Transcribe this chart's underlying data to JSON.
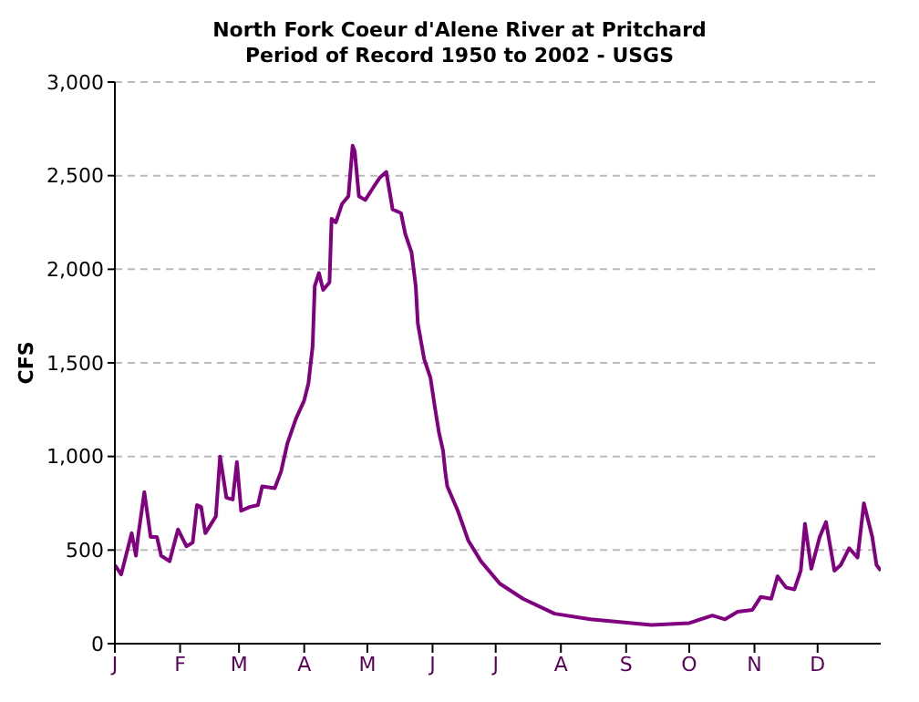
{
  "chart_data": {
    "type": "line",
    "title": "North Fork Coeur d'Alene River at Pritchard",
    "subtitle": "Period of Record 1950 to 2002 - USGS",
    "ylabel": "CFS",
    "categories": [
      "J",
      null,
      null,
      null,
      null,
      null,
      null,
      null,
      null,
      null,
      null,
      null,
      null,
      null,
      null,
      null,
      null,
      null,
      null,
      null,
      null,
      null,
      null,
      null,
      null,
      null,
      null,
      null,
      null,
      null,
      null,
      "F",
      null,
      null,
      null,
      null,
      null,
      null,
      null,
      null,
      null,
      null,
      null,
      null,
      null,
      null,
      null,
      null,
      null,
      null,
      null,
      null,
      null,
      null,
      null,
      null,
      null,
      null,
      null,
      "M",
      null,
      null,
      null,
      null,
      null,
      null,
      null,
      null,
      null,
      null,
      null,
      null,
      null,
      null,
      null,
      null,
      null,
      null,
      null,
      null,
      null,
      null,
      null,
      null,
      null,
      null,
      null,
      null,
      null,
      null,
      "A",
      null,
      null,
      null,
      null,
      null,
      null,
      null,
      null,
      null,
      null,
      null,
      null,
      null,
      null,
      null,
      null,
      null,
      null,
      null,
      null,
      null,
      null,
      null,
      null,
      null,
      null,
      null,
      null,
      null,
      "M",
      null,
      null,
      null,
      null,
      null,
      null,
      null,
      null,
      null,
      null,
      null,
      null,
      null,
      null,
      null,
      null,
      null,
      null,
      null,
      null,
      null,
      null,
      null,
      null,
      null,
      null,
      null,
      null,
      null,
      null,
      "J",
      null,
      null,
      null,
      null,
      null,
      null,
      null,
      null,
      null,
      null,
      null,
      null,
      null,
      null,
      null,
      null,
      null,
      null,
      null,
      null,
      null,
      null,
      null,
      null,
      null,
      null,
      null,
      null,
      null,
      "J",
      null,
      null,
      null,
      null,
      null,
      null,
      null,
      null,
      null,
      null,
      null,
      null,
      null,
      null,
      null,
      null,
      null,
      null,
      null,
      null,
      null,
      null,
      null,
      null,
      null,
      null,
      null,
      null,
      null,
      null,
      "A",
      null,
      null,
      null,
      null,
      null,
      null,
      null,
      null,
      null,
      null,
      null,
      null,
      null,
      null,
      null,
      null,
      null,
      null,
      null,
      null,
      null,
      null,
      null,
      null,
      null,
      null,
      null,
      null,
      null,
      null,
      "S",
      null,
      null,
      null,
      null,
      null,
      null,
      null,
      null,
      null,
      null,
      null,
      null,
      null,
      null,
      null,
      null,
      null,
      null,
      null,
      null,
      null,
      null,
      null,
      null,
      null,
      null,
      null,
      null,
      null,
      "O",
      null,
      null,
      null,
      null,
      null,
      null,
      null,
      null,
      null,
      null,
      null,
      null,
      null,
      null,
      null,
      null,
      null,
      null,
      null,
      null,
      null,
      null,
      null,
      null,
      null,
      null,
      null,
      null,
      null,
      null,
      "N",
      null,
      null,
      null,
      null,
      null,
      null,
      null,
      null,
      null,
      null,
      null,
      null,
      null,
      null,
      null,
      null,
      null,
      null,
      null,
      null,
      null,
      null,
      null,
      null,
      null,
      null,
      null,
      null,
      null,
      "D",
      null,
      null,
      null,
      null,
      null,
      null,
      null,
      null,
      null,
      null,
      null,
      null,
      null,
      null,
      null,
      null,
      null,
      null,
      null,
      null,
      null,
      null,
      null,
      null,
      null,
      null,
      null,
      null,
      null,
      null
    ],
    "series": [
      {
        "color": "#800080",
        "values": [
          420,
          null,
          null,
          370,
          null,
          null,
          null,
          null,
          590,
          null,
          470,
          570,
          null,
          null,
          810,
          null,
          null,
          570,
          null,
          null,
          570,
          null,
          470,
          null,
          null,
          null,
          440,
          null,
          null,
          null,
          610,
          null,
          null,
          null,
          520,
          null,
          null,
          540,
          null,
          740,
          null,
          730,
          null,
          590,
          null,
          null,
          null,
          null,
          680,
          null,
          1000,
          null,
          null,
          780,
          null,
          null,
          770,
          null,
          970,
          null,
          710,
          null,
          null,
          null,
          730,
          null,
          null,
          null,
          740,
          null,
          840,
          null,
          null,
          null,
          null,
          null,
          830,
          null,
          null,
          920,
          null,
          null,
          1070,
          null,
          null,
          null,
          1200,
          null,
          null,
          null,
          1300,
          null,
          1390,
          null,
          1590,
          1910,
          null,
          1980,
          null,
          1890,
          null,
          null,
          1930,
          2270,
          null,
          2250,
          null,
          null,
          2350,
          null,
          null,
          2390,
          null,
          2660,
          2630,
          null,
          2390,
          null,
          null,
          2370,
          null,
          null,
          null,
          2440,
          null,
          null,
          2490,
          null,
          null,
          2520,
          null,
          null,
          2320,
          null,
          null,
          null,
          2300,
          null,
          2190,
          null,
          null,
          2090,
          null,
          1910,
          1710,
          null,
          null,
          1520,
          null,
          null,
          1420,
          null,
          1270,
          null,
          1130,
          null,
          1030,
          920,
          840,
          null,
          null,
          null,
          null,
          710,
          null,
          null,
          null,
          null,
          550,
          null,
          null,
          null,
          null,
          null,
          440,
          null,
          null,
          null,
          null,
          null,
          null,
          null,
          null,
          320,
          null,
          null,
          null,
          null,
          null,
          null,
          null,
          null,
          null,
          null,
          240,
          null,
          null,
          null,
          null,
          null,
          null,
          null,
          null,
          null,
          null,
          null,
          null,
          null,
          null,
          160,
          null,
          null,
          null,
          null,
          null,
          null,
          null,
          null,
          null,
          null,
          null,
          null,
          null,
          null,
          null,
          null,
          130,
          null,
          null,
          null,
          null,
          null,
          null,
          null,
          null,
          null,
          null,
          null,
          null,
          null,
          null,
          null,
          null,
          null,
          null,
          null,
          null,
          null,
          null,
          null,
          null,
          null,
          null,
          null,
          null,
          100,
          null,
          null,
          null,
          null,
          null,
          null,
          null,
          null,
          null,
          null,
          null,
          null,
          null,
          null,
          null,
          null,
          null,
          110,
          null,
          null,
          null,
          null,
          null,
          null,
          null,
          null,
          null,
          null,
          150,
          null,
          null,
          null,
          null,
          null,
          130,
          null,
          null,
          null,
          null,
          null,
          170,
          null,
          null,
          null,
          null,
          null,
          null,
          180,
          null,
          null,
          null,
          250,
          null,
          null,
          null,
          null,
          240,
          null,
          null,
          360,
          null,
          null,
          null,
          300,
          null,
          null,
          null,
          290,
          null,
          null,
          390,
          null,
          640,
          null,
          null,
          400,
          null,
          null,
          null,
          570,
          null,
          null,
          650,
          null,
          null,
          null,
          390,
          null,
          null,
          420,
          null,
          null,
          null,
          510,
          null,
          null,
          null,
          460,
          null,
          null,
          750,
          null,
          null,
          null,
          570,
          null,
          420,
          null,
          390
        ]
      }
    ],
    "ylim": [
      0,
      3000
    ],
    "yticks": [
      0,
      500,
      {
        "value": 1000,
        "label": "1,000"
      },
      {
        "value": 1500,
        "label": "1,500"
      },
      {
        "value": 2000,
        "label": "2,000"
      },
      {
        "value": 2500,
        "label": "2,500"
      },
      {
        "value": 3000,
        "label": "3,000"
      }
    ],
    "grid": "y",
    "line_style": "solid"
  }
}
